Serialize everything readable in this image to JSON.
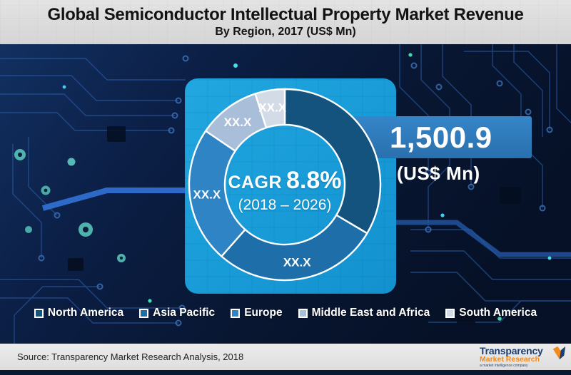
{
  "header": {
    "title": "Global Semiconductor Intellectual Property Market Revenue",
    "subtitle": "By Region, 2017 (US$ Mn)"
  },
  "chart_data": {
    "type": "pie",
    "subtype": "donut",
    "title": "Global Semiconductor Intellectual Property Market Revenue By Region, 2017 (US$ Mn)",
    "start_angle_deg": 0,
    "direction": "clockwise",
    "segments": [
      {
        "label": "North America",
        "share_pct": 33.5,
        "display_label": "",
        "color": "#15537f"
      },
      {
        "label": "Asia Pacific",
        "share_pct": 28.0,
        "display_label": "XX.X",
        "color": "#1e6fa9"
      },
      {
        "label": "Europe",
        "share_pct": 23.0,
        "display_label": "XX.X",
        "color": "#2e84c4"
      },
      {
        "label": "Middle East and Africa",
        "share_pct": 10.5,
        "display_label": "XX.X",
        "color": "#a9bed8"
      },
      {
        "label": "South America",
        "share_pct": 5.0,
        "display_label": "XX.X",
        "color": "#d3dbe7"
      }
    ],
    "center": {
      "cagr_prefix": "CAGR",
      "cagr_value": "8.8%",
      "period": "(2018 – 2026)"
    },
    "callout": {
      "value": "1,500.9",
      "unit": "(US$ Mn)"
    },
    "legend_position": "bottom"
  },
  "footer": {
    "source": "Source: Transparency Market Research Analysis, 2018"
  },
  "logo": {
    "line1": "Transparency",
    "line2": "Market Research",
    "tagline": "a market intelligence company"
  },
  "colors": {
    "panel_blue": "#1b9ed9",
    "band_blue": "#2f7bba",
    "board_navy": "#0a1a38",
    "header_gray": "#d9d9d9",
    "logo_navy": "#1c3e6e",
    "logo_orange": "#f28a1e"
  }
}
